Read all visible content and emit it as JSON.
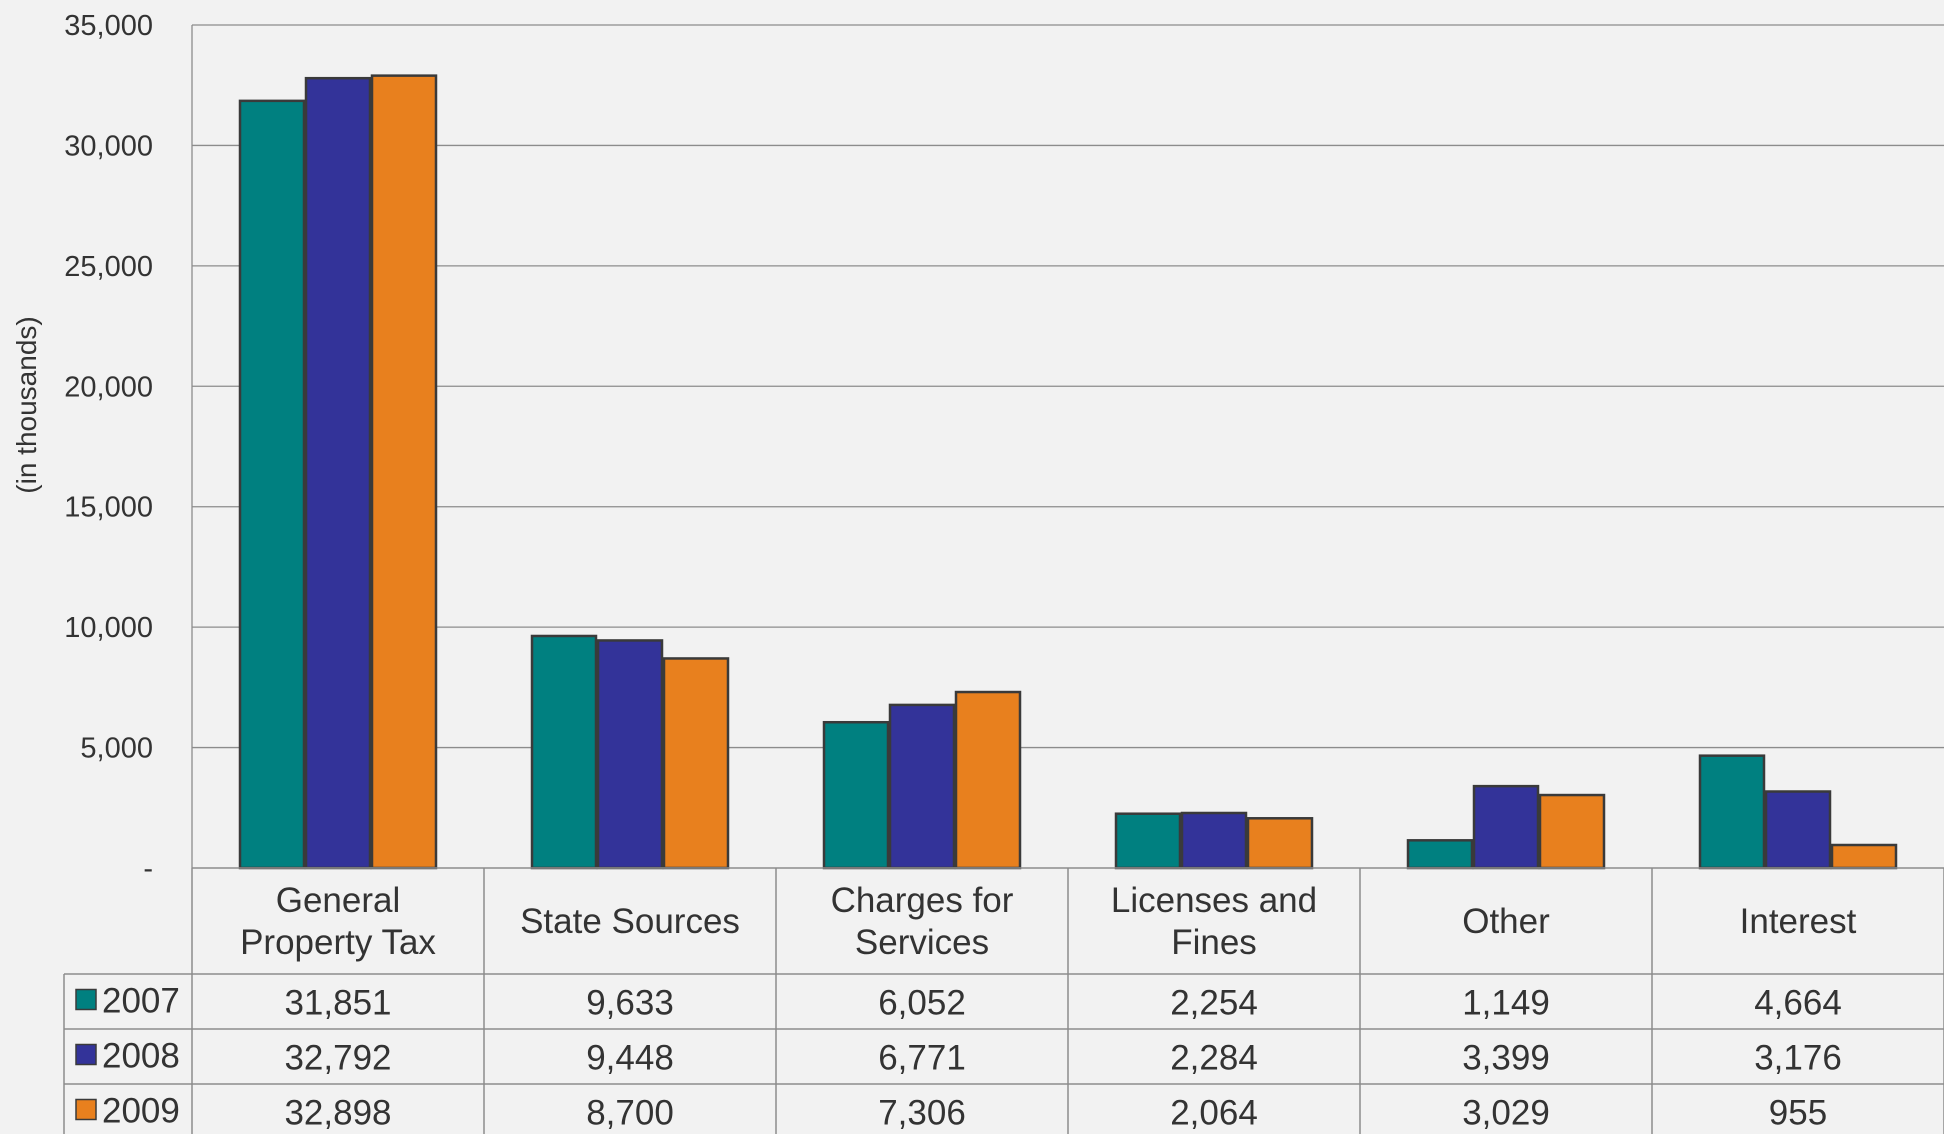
{
  "chart_data": {
    "type": "bar",
    "ylabel": "(in thousands)",
    "ylim": [
      0,
      35000
    ],
    "yticks": [
      0,
      5000,
      10000,
      15000,
      20000,
      25000,
      30000,
      35000
    ],
    "ytick_labels": [
      "-",
      "5,000",
      "10,000",
      "15,000",
      "20,000",
      "25,000",
      "30,000",
      "35,000"
    ],
    "categories": [
      [
        "General",
        "Property Tax"
      ],
      [
        "State Sources"
      ],
      [
        "Charges for",
        "Services"
      ],
      [
        "Licenses and",
        "Fines"
      ],
      [
        "Other"
      ],
      [
        "Interest"
      ]
    ],
    "series": [
      {
        "name": "2007",
        "color": "#008080",
        "values": [
          31851,
          9633,
          6052,
          2254,
          1149,
          4664
        ],
        "labels": [
          "31,851",
          "9,633",
          "6,052",
          "2,254",
          "1,149",
          "4,664"
        ]
      },
      {
        "name": "2008",
        "color": "#333399",
        "values": [
          32792,
          9448,
          6771,
          2284,
          3399,
          3176
        ],
        "labels": [
          "32,792",
          "9,448",
          "6,771",
          "2,284",
          "3,399",
          "3,176"
        ]
      },
      {
        "name": "2009",
        "color": "#e8801e",
        "values": [
          32898,
          8700,
          7306,
          2064,
          3029,
          955
        ],
        "labels": [
          "32,898",
          "8,700",
          "7,306",
          "2,064",
          "3,029",
          "955"
        ]
      }
    ],
    "grid": true,
    "legend": "data-table"
  }
}
